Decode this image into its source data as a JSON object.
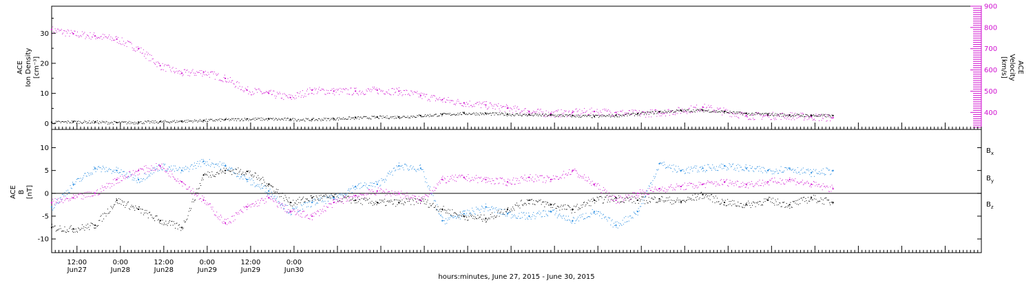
{
  "chart_data": [
    {
      "type": "scatter",
      "panel": "top",
      "ylabel_left": [
        "ACE",
        "Ion Density",
        "[cm⁻³]"
      ],
      "ylabel_right": [
        "ACE",
        "Velocity",
        "[km/s]"
      ],
      "ylim_left": [
        -2,
        39
      ],
      "ylim_right": [
        320,
        900
      ],
      "yticks_left": [
        0,
        10,
        20,
        30
      ],
      "yticks_right": [
        400,
        500,
        600,
        700,
        800,
        900
      ],
      "right_axis_color": "#d010d0",
      "grid": false,
      "legend": "none",
      "series": [
        {
          "name": "Ion Density",
          "axis": "left",
          "color": "#000000",
          "hours": [
            0,
            6,
            12,
            18,
            24,
            30,
            36,
            42,
            48,
            54,
            60,
            66,
            72,
            78,
            84,
            90,
            96,
            102,
            108,
            114,
            120,
            126,
            132,
            138,
            144,
            150,
            156,
            162,
            168,
            174,
            180,
            186,
            192,
            198,
            204,
            210,
            216
          ],
          "values": [
            0.4,
            0.6,
            0.5,
            0.3,
            0.4,
            0.6,
            0.8,
            1.0,
            1.3,
            1.5,
            1.5,
            1.4,
            1.3,
            1.6,
            1.9,
            2.1,
            2.2,
            2.6,
            3.0,
            3.4,
            3.3,
            3.1,
            2.9,
            2.8,
            2.6,
            2.4,
            2.7,
            3.2,
            3.9,
            4.3,
            4.4,
            3.9,
            3.3,
            3.1,
            2.8,
            2.7,
            2.6
          ]
        },
        {
          "name": "Velocity",
          "axis": "right",
          "color": "#d010d0",
          "hours": [
            0,
            6,
            12,
            18,
            24,
            30,
            36,
            42,
            48,
            54,
            60,
            66,
            72,
            78,
            84,
            90,
            96,
            102,
            108,
            114,
            120,
            126,
            132,
            138,
            144,
            150,
            156,
            162,
            168,
            174,
            180,
            186,
            192,
            198,
            204,
            210,
            216
          ],
          "values": [
            790,
            770,
            760,
            745,
            700,
            620,
            585,
            590,
            560,
            505,
            490,
            470,
            505,
            500,
            500,
            505,
            500,
            480,
            460,
            445,
            435,
            420,
            405,
            395,
            400,
            405,
            400,
            395,
            400,
            410,
            425,
            405,
            385,
            385,
            385,
            380,
            375
          ]
        }
      ]
    },
    {
      "type": "scatter",
      "panel": "bottom",
      "ylabel_left": [
        "ACE",
        "B",
        "[nT]"
      ],
      "ylim": [
        -13,
        14
      ],
      "yticks": [
        -10,
        -5,
        0,
        5,
        10
      ],
      "grid": false,
      "legend": "right",
      "series": [
        {
          "name": "Bx",
          "color": "#000000",
          "hours": [
            0,
            6,
            12,
            18,
            24,
            30,
            36,
            42,
            48,
            54,
            60,
            66,
            72,
            78,
            84,
            90,
            96,
            102,
            108,
            114,
            120,
            126,
            132,
            138,
            144,
            150,
            156,
            162,
            168,
            174,
            180,
            186,
            192,
            198,
            204,
            210,
            216
          ],
          "values": [
            -7.5,
            -7.8,
            -7.0,
            -1.5,
            -3.5,
            -6.0,
            -7.5,
            4.0,
            5.0,
            4.8,
            2.0,
            -2.0,
            -1.0,
            -0.8,
            -1.5,
            -2.0,
            -2.0,
            -1.5,
            -3.5,
            -5.0,
            -5.5,
            -3.5,
            -1.5,
            -2.5,
            -3.5,
            -1.5,
            -1.0,
            -1.5,
            -1.2,
            -1.8,
            -0.3,
            -2.0,
            -2.5,
            -1.5,
            -2.5,
            -1.0,
            -2.0
          ]
        },
        {
          "name": "By",
          "color": "#1f88e0",
          "hours": [
            0,
            6,
            12,
            18,
            24,
            30,
            36,
            42,
            48,
            54,
            60,
            66,
            72,
            78,
            84,
            90,
            96,
            102,
            108,
            114,
            120,
            126,
            132,
            138,
            144,
            150,
            156,
            162,
            168,
            174,
            180,
            186,
            192,
            198,
            204,
            210,
            216
          ],
          "values": [
            -3.0,
            2.0,
            5.5,
            5.0,
            3.0,
            6.0,
            5.0,
            7.0,
            6.0,
            3.0,
            0.5,
            -4.0,
            -2.0,
            -1.0,
            1.5,
            2.0,
            6.0,
            5.5,
            -6.0,
            -4.5,
            -3.0,
            -4.5,
            -5.0,
            -4.0,
            -6.0,
            -4.0,
            -7.0,
            -4.0,
            6.5,
            5.0,
            5.5,
            6.0,
            5.5,
            5.0,
            5.5,
            4.5,
            5.0
          ]
        },
        {
          "name": "Bz",
          "color": "#d010d0",
          "hours": [
            0,
            6,
            12,
            18,
            24,
            30,
            36,
            42,
            48,
            54,
            60,
            66,
            72,
            78,
            84,
            90,
            96,
            102,
            108,
            114,
            120,
            126,
            132,
            138,
            144,
            150,
            156,
            162,
            168,
            174,
            180,
            186,
            192,
            198,
            204,
            210,
            216
          ],
          "values": [
            -2.0,
            -1.0,
            0.0,
            3.0,
            5.0,
            6.0,
            2.5,
            -1.5,
            -6.5,
            -3.0,
            -1.0,
            -4.0,
            -5.0,
            -2.0,
            -0.5,
            0.5,
            0.0,
            -1.5,
            3.0,
            3.5,
            3.0,
            2.5,
            3.5,
            3.0,
            5.0,
            2.0,
            -1.5,
            0.0,
            1.0,
            1.5,
            2.0,
            2.5,
            2.0,
            2.5,
            3.0,
            2.0,
            1.0
          ]
        }
      ]
    }
  ],
  "x_axis": {
    "tick_labels": [
      {
        "time": "12:00",
        "date": "Jun27"
      },
      {
        "time": "0:00",
        "date": "Jun28"
      },
      {
        "time": "12:00",
        "date": "Jun28"
      },
      {
        "time": "0:00",
        "date": "Jun29"
      },
      {
        "time": "12:00",
        "date": "Jun29"
      },
      {
        "time": "0:00",
        "date": "Jun30"
      }
    ],
    "label": "hours:minutes, June 27, 2015 - June 30, 2015"
  },
  "legend_labels": {
    "bx": {
      "base": "B",
      "sub": "x",
      "color": "#000000"
    },
    "by": {
      "base": "B",
      "sub": "y",
      "color": "#1f88e0"
    },
    "bz": {
      "base": "B",
      "sub": "z",
      "color": "#d010d0"
    }
  },
  "colors": {
    "black": "#000000",
    "magenta": "#d010d0",
    "blue": "#1f88e0"
  }
}
